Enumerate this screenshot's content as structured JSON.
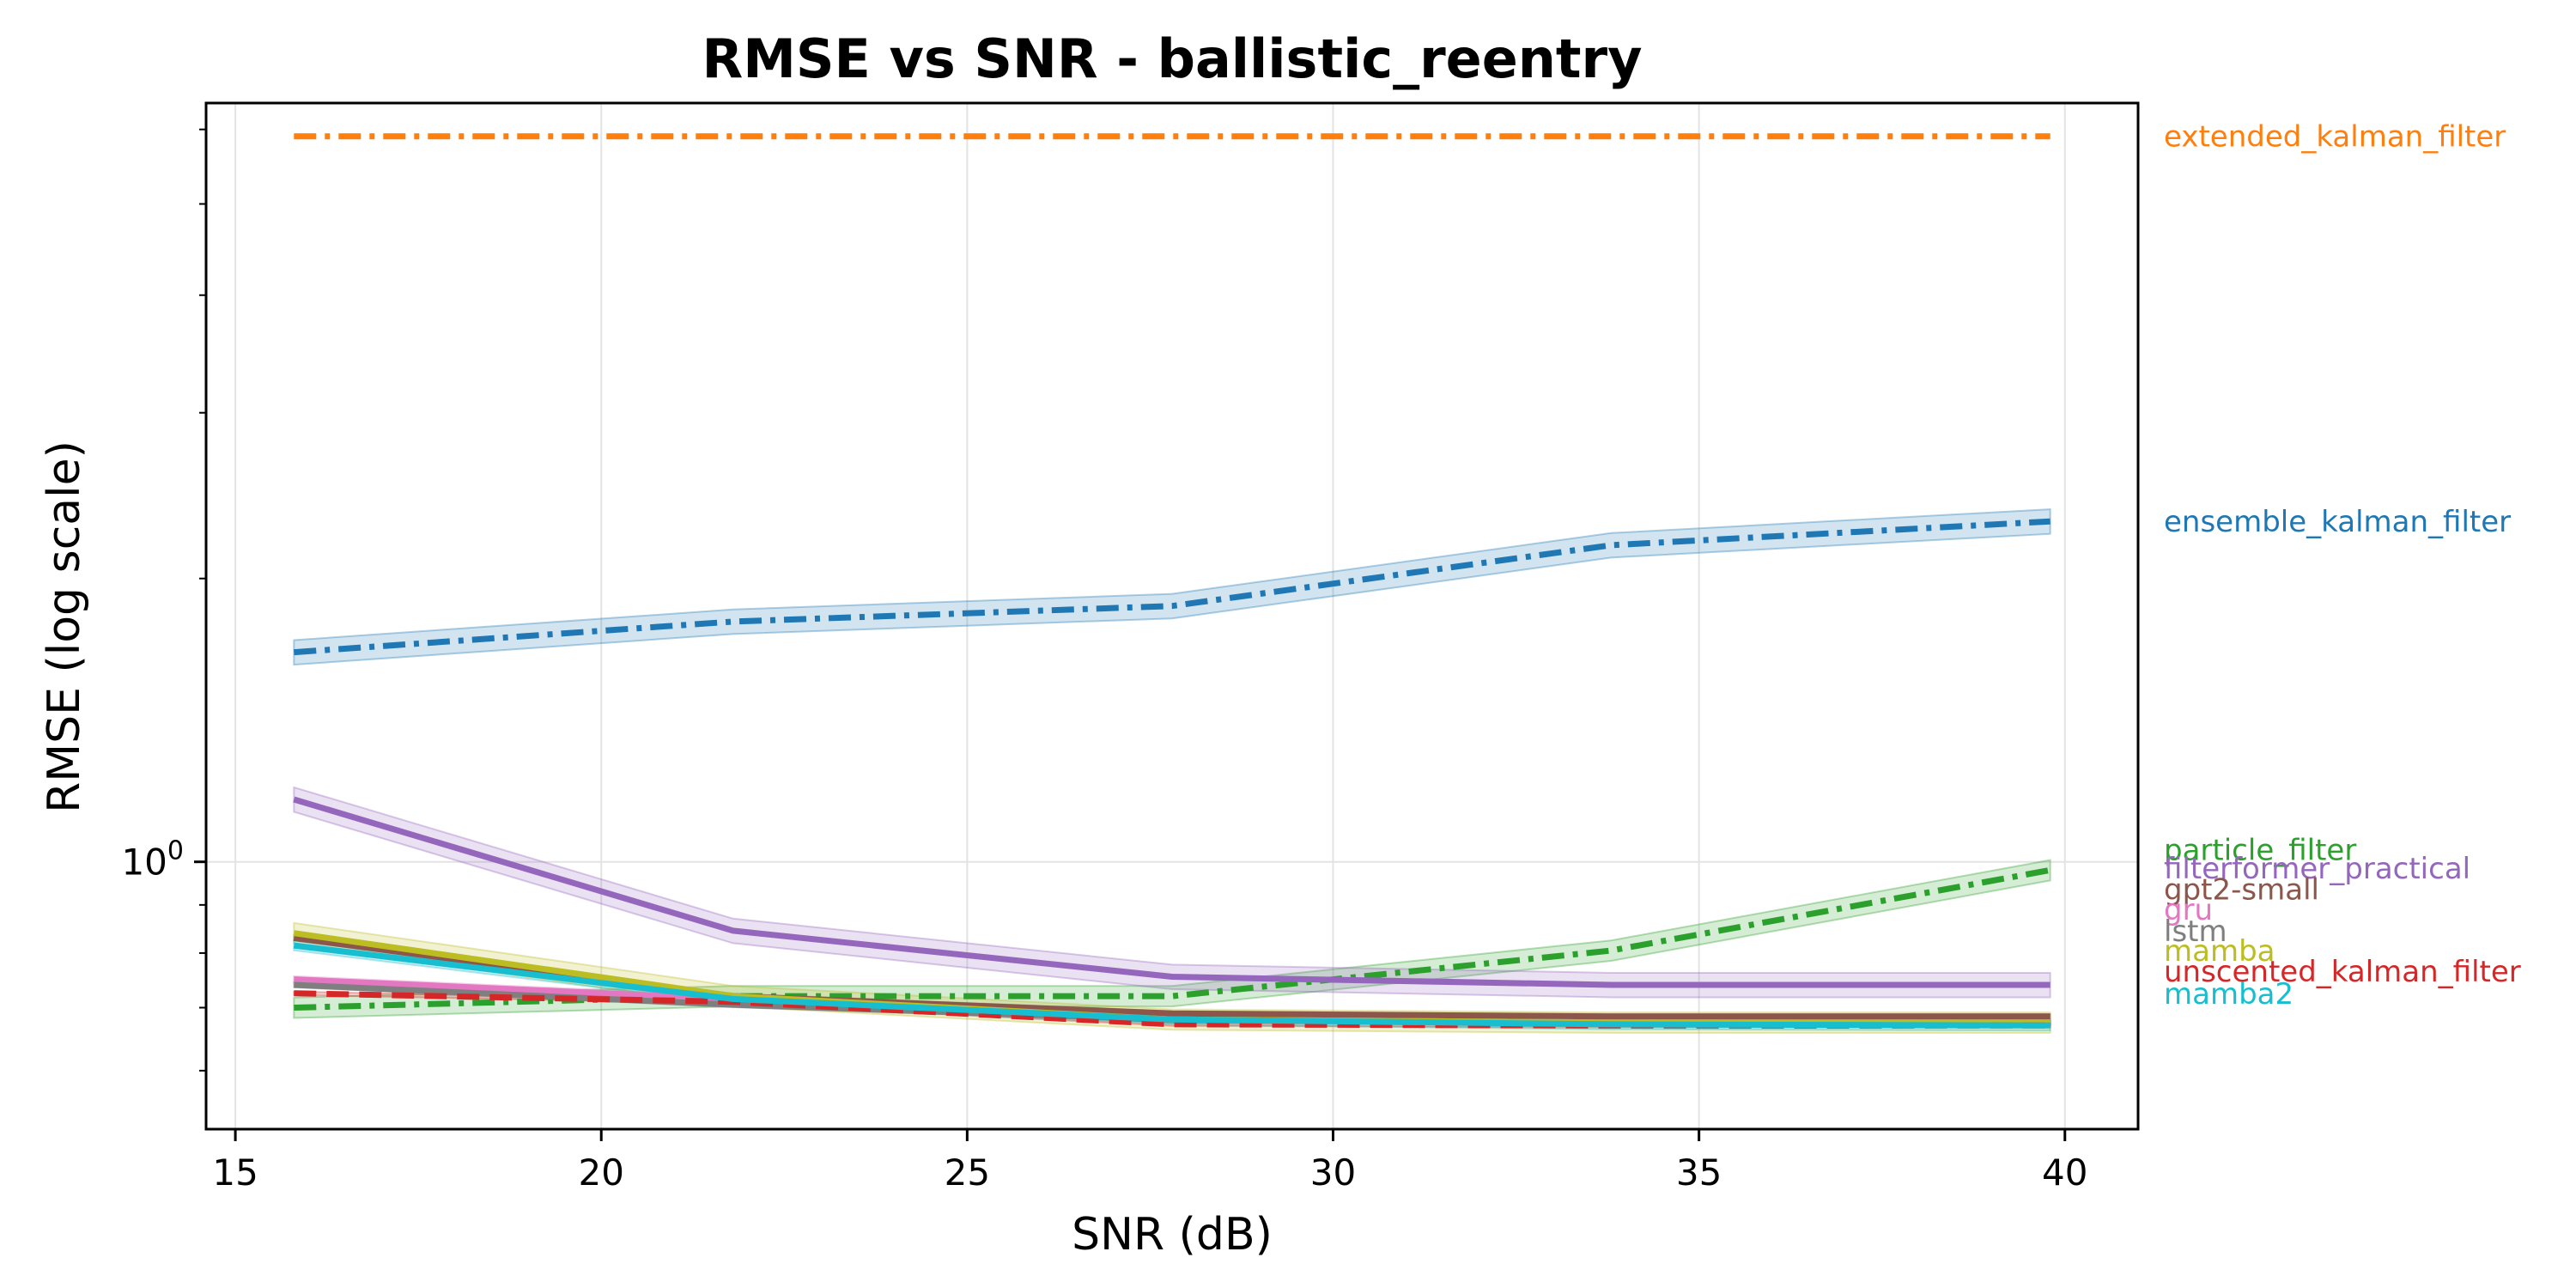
{
  "chart_data": {
    "type": "line",
    "title": "RMSE vs SNR - ballistic_reentry",
    "xlabel": "SNR (dB)",
    "ylabel": "RMSE (log scale)",
    "yscale": "log",
    "xlim": [
      14.6,
      41.0
    ],
    "ylim": [
      0.52,
      6.4
    ],
    "xticks": [
      15,
      20,
      25,
      30,
      35,
      40
    ],
    "xtick_labels": [
      "15",
      "20",
      "25",
      "30",
      "35",
      "40"
    ],
    "yticks": [
      1.0
    ],
    "ytick_labels": [
      "10^0"
    ],
    "grid": true,
    "legend": "inline-right",
    "x": [
      15.8,
      21.8,
      27.8,
      33.8,
      39.8
    ],
    "series": [
      {
        "name": "extended_kalman_filter",
        "color": "#ff7f0e",
        "dash": "dashdot",
        "values": [
          5.9,
          5.9,
          5.9,
          5.9,
          5.9
        ],
        "band": 0.0
      },
      {
        "name": "ensemble_kalman_filter",
        "color": "#1f77b4",
        "dash": "dashdot",
        "values": [
          1.67,
          1.8,
          1.87,
          2.17,
          2.3
        ],
        "band": 0.03
      },
      {
        "name": "particle_filter",
        "color": "#2ca02c",
        "dash": "dashdot",
        "values": [
          0.7,
          0.72,
          0.72,
          0.805,
          0.98
        ],
        "band": 0.025
      },
      {
        "name": "filterformer_practical",
        "color": "#9467bd",
        "dash": "solid",
        "values": [
          1.165,
          0.845,
          0.755,
          0.74,
          0.74
        ],
        "band": 0.03
      },
      {
        "name": "gpt2-small",
        "color": "#8c564b",
        "dash": "solid",
        "values": [
          0.83,
          0.72,
          0.69,
          0.685,
          0.685
        ],
        "band": 0.006
      },
      {
        "name": "gru",
        "color": "#e377c2",
        "dash": "solid",
        "values": [
          0.75,
          0.715,
          0.68,
          0.675,
          0.675
        ],
        "band": 0.008
      },
      {
        "name": "lstm",
        "color": "#7f7f7f",
        "dash": "solid",
        "values": [
          0.74,
          0.705,
          0.68,
          0.675,
          0.675
        ],
        "band": 0.006
      },
      {
        "name": "mamba",
        "color": "#bcbd22",
        "dash": "solid",
        "values": [
          0.84,
          0.72,
          0.68,
          0.675,
          0.675
        ],
        "band": 0.025
      },
      {
        "name": "unscented_kalman_filter",
        "color": "#d62728",
        "dash": "dashed",
        "values": [
          0.725,
          0.71,
          0.672,
          0.67,
          0.67
        ],
        "band": 0.004
      },
      {
        "name": "mamba2",
        "color": "#17becf",
        "dash": "solid",
        "values": [
          0.815,
          0.715,
          0.68,
          0.672,
          0.67
        ],
        "band": 0.012
      }
    ],
    "inline_labels": [
      {
        "name": "extended_kalman_filter",
        "color": "#ff7f0e",
        "y": 5.9
      },
      {
        "name": "ensemble_kalman_filter",
        "color": "#1f77b4",
        "y": 2.3
      },
      {
        "name": "particle_filter",
        "color": "#2ca02c",
        "y": 1.03
      },
      {
        "name": "filterformer_practical",
        "color": "#9467bd",
        "y": 0.985
      },
      {
        "name": "gpt2-small",
        "color": "#8c564b",
        "y": 0.935
      },
      {
        "name": "gru",
        "color": "#e377c2",
        "y": 0.89
      },
      {
        "name": "lstm",
        "color": "#7f7f7f",
        "y": 0.845
      },
      {
        "name": "mamba",
        "color": "#bcbd22",
        "y": 0.805
      },
      {
        "name": "unscented_kalman_filter",
        "color": "#d62728",
        "y": 0.765
      },
      {
        "name": "mamba2",
        "color": "#17becf",
        "y": 0.725
      }
    ]
  }
}
